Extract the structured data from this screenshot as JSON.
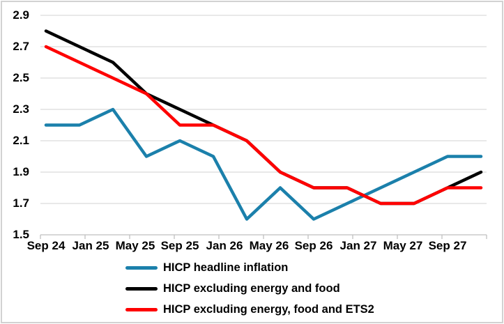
{
  "chart_data": {
    "type": "line",
    "title": "",
    "xlabel": "",
    "ylabel": "",
    "ylim": [
      1.5,
      2.9
    ],
    "ytick_step": 0.2,
    "y_tick_labels": [
      "2.9",
      "2.7",
      "2.5",
      "2.3",
      "2.1",
      "1.9",
      "1.7",
      "1.5"
    ],
    "grid": true,
    "legend_position": "bottom-left",
    "x_months_total": 40,
    "tick_interval_months": 4,
    "x_axis_labels": [
      {
        "text": "Sep 24",
        "month": 0
      },
      {
        "text": "Jan 25",
        "month": 4
      },
      {
        "text": "May 25",
        "month": 8
      },
      {
        "text": "Sep 25",
        "month": 12
      },
      {
        "text": "Jan 26",
        "month": 16
      },
      {
        "text": "May 26",
        "month": 20
      },
      {
        "text": "Sep 26",
        "month": 24
      },
      {
        "text": "Jan 27",
        "month": 28
      },
      {
        "text": "May 27",
        "month": 32
      },
      {
        "text": "Sep 27",
        "month": 36
      }
    ],
    "x_point_months": [
      0,
      3,
      6,
      9,
      12,
      15,
      18,
      21,
      24,
      27,
      30,
      33,
      36,
      39
    ],
    "x_point_names": [
      "Sep 24",
      "Dec 24",
      "Mar 25",
      "Jun 25",
      "Sep 25",
      "Dec 25",
      "Mar 26",
      "Jun 26",
      "Sep 26",
      "Dec 26",
      "Mar 27",
      "Jun 27",
      "Sep 27",
      "Dec 27"
    ],
    "series": [
      {
        "name": "HICP headline inflation",
        "slug": "hicp-headline-inflation",
        "color": "#1b80ab",
        "values": [
          2.2,
          2.2,
          2.3,
          2.0,
          2.1,
          2.0,
          1.6,
          1.8,
          1.6,
          1.7,
          1.8,
          1.9,
          2.0,
          2.0
        ]
      },
      {
        "name": "HICP excluding energy and food",
        "slug": "hicp-excluding-energy-and-food",
        "color": "#000000",
        "values": [
          2.8,
          2.7,
          2.6,
          2.4,
          2.3,
          2.2,
          2.1,
          1.9,
          1.8,
          1.8,
          1.7,
          1.7,
          1.8,
          1.9
        ]
      },
      {
        "name": "HICP excluding energy, food and ETS2",
        "slug": "hicp-excluding-energy-food-and-ets2",
        "color": "#fe0000",
        "values": [
          2.7,
          2.6,
          2.5,
          2.4,
          2.2,
          2.2,
          2.1,
          1.9,
          1.8,
          1.8,
          1.7,
          1.7,
          1.8,
          1.8
        ]
      }
    ],
    "colors": {
      "gridline": "#d9d9d9",
      "axis": "#bfbfbf",
      "text": "#000000"
    }
  }
}
